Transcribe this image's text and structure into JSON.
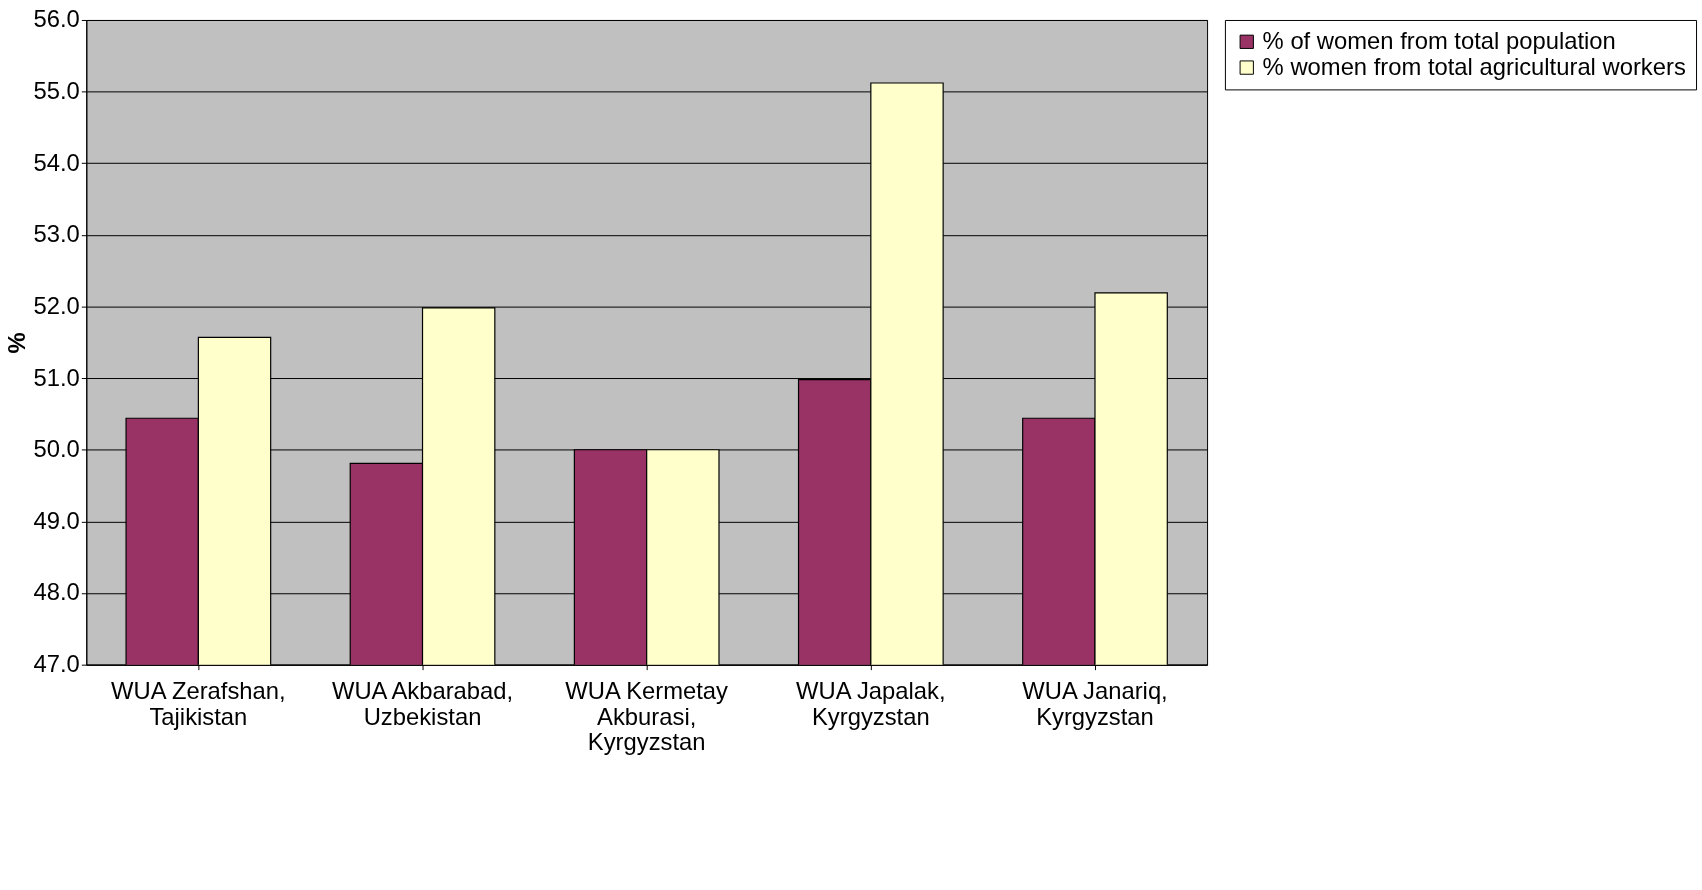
{
  "chart_data": {
    "type": "bar",
    "ylabel": "%",
    "categories": [
      "WUA Zerafshan, Tajikistan",
      "WUA Akbarabad, Uzbekistan",
      "WUA Kermetay Akburasi, Kyrgyzstan",
      "WUA Japalak, Kyrgyzstan",
      "WUA Janariq, Kyrgyzstan"
    ],
    "series": [
      {
        "name": "%  of women from total population",
        "color": "#993366",
        "values": [
          50.44,
          49.81,
          50.0,
          50.98,
          50.44
        ]
      },
      {
        "name": "% women from total agricultural workers",
        "color": "#ffffcc",
        "values": [
          51.57,
          51.98,
          50.0,
          55.12,
          52.19
        ]
      }
    ],
    "ylim": [
      47,
      56
    ],
    "yticks": [
      {
        "value": 47,
        "label": "47.0"
      },
      {
        "value": 48,
        "label": "48.0"
      },
      {
        "value": 49,
        "label": "49.0"
      },
      {
        "value": 50,
        "label": "50.0"
      },
      {
        "value": 51,
        "label": "51.0"
      },
      {
        "value": 52,
        "label": "52.0"
      },
      {
        "value": 53,
        "label": "53.0"
      },
      {
        "value": 54,
        "label": "54.0"
      },
      {
        "value": 55,
        "label": "55.0"
      },
      {
        "value": 56,
        "label": "56.0"
      }
    ],
    "grid": "y",
    "legend": "right"
  }
}
